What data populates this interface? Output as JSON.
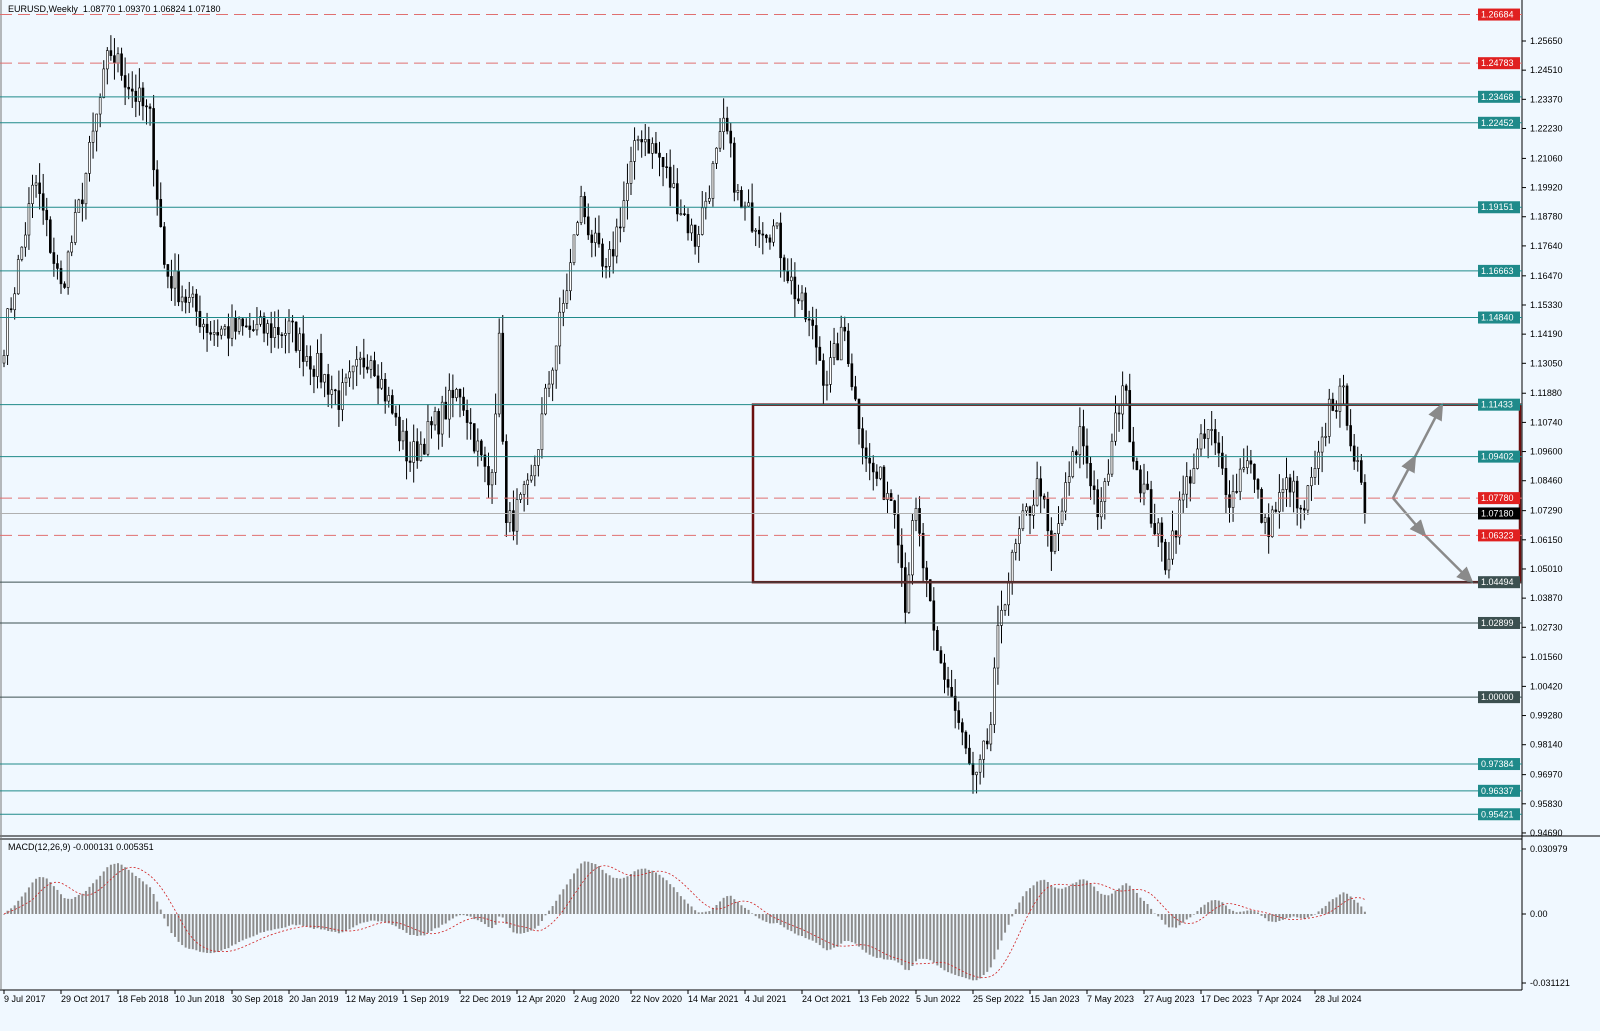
{
  "header": {
    "symbol": "EURUSD,Weekly",
    "ohlc": "1.08770 1.09370 1.06824 1.07180"
  },
  "macd_label": {
    "name": "MACD(12,26,9)",
    "values": "-0.000131 0.005351"
  },
  "colors": {
    "background": "#f0f8ff",
    "red_level": "#e02020",
    "teal_level": "#1f8a8a",
    "gray_level": "#3c5050",
    "box": "#6b0f0f",
    "arrow": "#8a8a8a",
    "histogram": "#8c8c8c",
    "signal": "#d02020"
  },
  "chart_data": [
    {
      "type": "candlestick",
      "title": "EURUSD,Weekly",
      "ylim": [
        0.9469,
        1.2706
      ],
      "y_ticks": [
        "1.25650",
        "1.24510",
        "1.23370",
        "1.22230",
        "1.21060",
        "1.19920",
        "1.18780",
        "1.17640",
        "1.16470",
        "1.15330",
        "1.14190",
        "1.13050",
        "1.11880",
        "1.10740",
        "1.09600",
        "1.08460",
        "1.07290",
        "1.06150",
        "1.05010",
        "1.03870",
        "1.02730",
        "1.01560",
        "1.00420",
        "0.99280",
        "0.98140",
        "0.96970",
        "0.95830",
        "0.94690"
      ],
      "x_ticks": [
        "9 Jul 2017",
        "29 Oct 2017",
        "18 Feb 2018",
        "10 Jun 2018",
        "30 Sep 2018",
        "20 Jan 2019",
        "12 May 2019",
        "1 Sep 2019",
        "22 Dec 2019",
        "12 Apr 2020",
        "2 Aug 2020",
        "22 Nov 2020",
        "14 Mar 2021",
        "4 Jul 2021",
        "24 Oct 2021",
        "13 Feb 2022",
        "5 Jun 2022",
        "25 Sep 2022",
        "15 Jan 2023",
        "7 May 2023",
        "27 Aug 2023",
        "17 Dec 2023",
        "7 Apr 2024",
        "28 Jul 2024"
      ],
      "x_tick_dates": [
        "2017-07-09",
        "2017-10-29",
        "2018-02-18",
        "2018-06-10",
        "2018-09-30",
        "2019-01-20",
        "2019-05-12",
        "2019-09-01",
        "2019-12-22",
        "2020-04-12",
        "2020-08-02",
        "2020-11-22",
        "2021-03-14",
        "2021-07-04",
        "2021-10-24",
        "2022-02-13",
        "2022-06-05",
        "2022-09-25",
        "2023-01-15",
        "2023-05-07",
        "2023-08-27",
        "2023-12-17",
        "2024-04-07",
        "2024-07-28"
      ],
      "approx_close_path": [
        [
          "2017-07-09",
          1.1396
        ],
        [
          "2017-09-08",
          1.2022
        ],
        [
          "2017-10-29",
          1.1592
        ],
        [
          "2017-12-07",
          1.1943
        ],
        [
          "2018-02-02",
          1.253
        ],
        [
          "2018-04-22",
          1.2256
        ],
        [
          "2018-05-21",
          1.167
        ],
        [
          "2018-08-18",
          1.1435
        ],
        [
          "2018-10-16",
          1.1435
        ],
        [
          "2019-01-22",
          1.1435
        ],
        [
          "2019-04-30",
          1.1162
        ],
        [
          "2019-06-28",
          1.1357
        ],
        [
          "2019-09-13",
          1.0927
        ],
        [
          "2019-12-22",
          1.1201
        ],
        [
          "2020-02-19",
          1.081
        ],
        [
          "2020-03-10",
          1.1435
        ],
        [
          "2020-03-20",
          1.0653
        ],
        [
          "2020-05-08",
          1.081
        ],
        [
          "2020-06-07",
          1.1162
        ],
        [
          "2020-07-25",
          1.167
        ],
        [
          "2020-08-14",
          1.1943
        ],
        [
          "2020-10-03",
          1.1631
        ],
        [
          "2020-12-10",
          1.2217
        ],
        [
          "2021-01-18",
          1.21
        ],
        [
          "2021-03-28",
          1.1787
        ],
        [
          "2021-05-26",
          1.2237
        ],
        [
          "2021-06-24",
          1.1904
        ],
        [
          "2021-09-01",
          1.1826
        ],
        [
          "2021-10-01",
          1.1631
        ],
        [
          "2021-11-19",
          1.1396
        ],
        [
          "2021-12-09",
          1.124
        ],
        [
          "2022-01-17",
          1.1435
        ],
        [
          "2022-02-05",
          1.1162
        ],
        [
          "2022-03-07",
          1.0888
        ],
        [
          "2022-04-25",
          1.0771
        ],
        [
          "2022-05-15",
          1.038
        ],
        [
          "2022-06-03",
          1.0732
        ],
        [
          "2022-07-13",
          1.0184
        ],
        [
          "2022-08-11",
          1.0028
        ],
        [
          "2022-09-29",
          0.9637
        ],
        [
          "2022-10-29",
          0.9871
        ],
        [
          "2022-11-18",
          1.0341
        ],
        [
          "2022-12-28",
          1.0653
        ],
        [
          "2023-02-04",
          1.0849
        ],
        [
          "2023-02-24",
          1.0536
        ],
        [
          "2023-04-24",
          1.1044
        ],
        [
          "2023-06-02",
          1.0692
        ],
        [
          "2023-07-16",
          1.124
        ],
        [
          "2023-08-09",
          1.0927
        ],
        [
          "2023-10-08",
          1.0536
        ],
        [
          "2023-11-27",
          1.0888
        ],
        [
          "2024-01-02",
          1.1044
        ],
        [
          "2024-02-15",
          1.0771
        ],
        [
          "2024-03-16",
          1.0966
        ],
        [
          "2024-04-21",
          1.0653
        ],
        [
          "2024-06-09",
          1.0849
        ],
        [
          "2024-06-29",
          1.0692
        ],
        [
          "2024-08-07",
          1.0927
        ],
        [
          "2024-08-27",
          1.1162
        ],
        [
          "2024-09-25",
          1.1162
        ],
        [
          "2024-10-15",
          1.0927
        ],
        [
          "2024-11-03",
          1.0718
        ]
      ],
      "current_price": "1.07180",
      "levels": [
        {
          "price": "1.26684",
          "style": "red-dashed"
        },
        {
          "price": "1.24783",
          "style": "red-dashed"
        },
        {
          "price": "1.23468",
          "style": "teal"
        },
        {
          "price": "1.22452",
          "style": "teal"
        },
        {
          "price": "1.19151",
          "style": "teal"
        },
        {
          "price": "1.16663",
          "style": "teal"
        },
        {
          "price": "1.14840",
          "style": "teal"
        },
        {
          "price": "1.11433",
          "style": "teal"
        },
        {
          "price": "1.09402",
          "style": "teal"
        },
        {
          "price": "1.07780",
          "style": "red-dashed"
        },
        {
          "price": "1.06323",
          "style": "red-dashed"
        },
        {
          "price": "1.04494",
          "style": "gray"
        },
        {
          "price": "1.02899",
          "style": "gray"
        },
        {
          "price": "1.00000",
          "style": "gray"
        },
        {
          "price": "0.97384",
          "style": "teal"
        },
        {
          "price": "0.96337",
          "style": "teal"
        },
        {
          "price": "0.95421",
          "style": "teal"
        }
      ],
      "range_box": {
        "from": "2021-07-04",
        "to_right_edge": true,
        "top": 1.11433,
        "bottom": 1.04494
      },
      "scenario_arrows": [
        {
          "direction": "up",
          "points": [
            [
              1.0778
            ],
            [
              1.094
            ],
            [
              1.1143
            ]
          ]
        },
        {
          "direction": "down",
          "points": [
            [
              1.0778
            ],
            [
              1.0632
            ],
            [
              1.0449
            ]
          ]
        }
      ]
    },
    {
      "type": "bar+line",
      "title": "MACD(12,26,9)",
      "ylim": [
        -0.031121,
        0.030979
      ],
      "y_ticks": [
        "0.030979",
        "0.00",
        "-0.031121"
      ],
      "last_values": {
        "macd": -0.000131,
        "signal": 0.005351
      }
    }
  ]
}
